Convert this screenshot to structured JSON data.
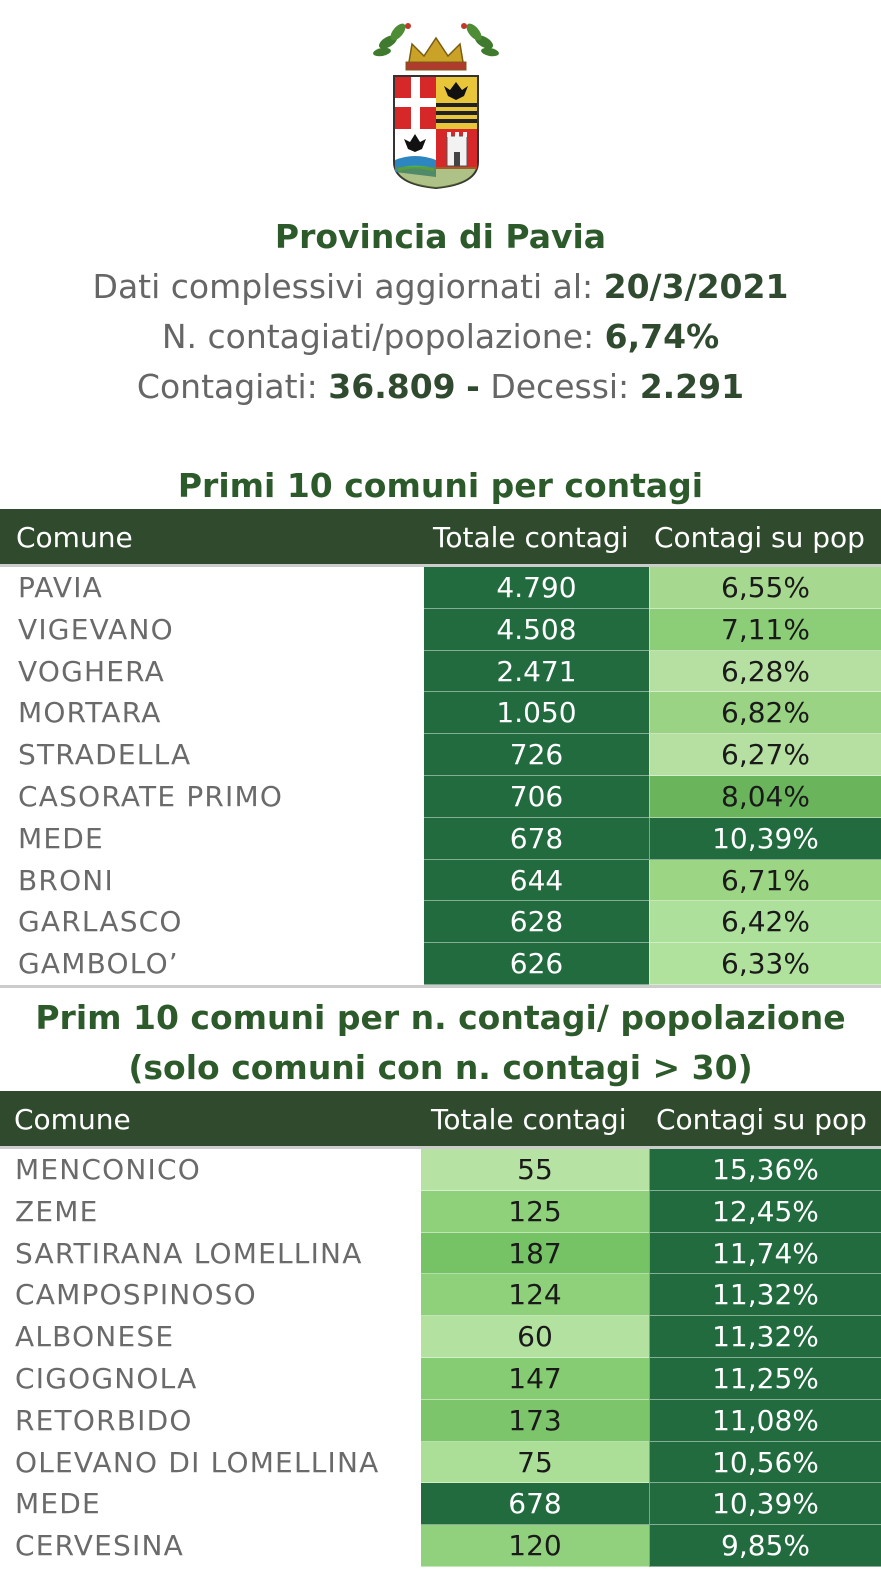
{
  "header": {
    "title": "Provincia di Pavia",
    "date_label": "Dati complessivi aggiornati al:",
    "date_value": "20/3/2021",
    "ratio_label": "N. contagiati/popolazione:",
    "ratio_value": "6,74%",
    "cases_label": "Contagiati:",
    "cases_value": "36.809",
    "separator": "-",
    "deaths_label": "Decessi:",
    "deaths_value": "2.291"
  },
  "table1": {
    "title": "Primi 10 comuni per contagi",
    "columns": [
      "Comune",
      "Totale contagi",
      "Contagi su pop"
    ],
    "rows": [
      {
        "comune": "PAVIA",
        "totale": "4.790",
        "perc": "6,55%",
        "col_a": "#216b3f",
        "col_b": "#a6d98f"
      },
      {
        "comune": "VIGEVANO",
        "totale": "4.508",
        "perc": "7,11%",
        "col_a": "#216b3f",
        "col_b": "#8ccd78"
      },
      {
        "comune": "VOGHERA",
        "totale": "2.471",
        "perc": "6,28%",
        "col_a": "#216b3f",
        "col_b": "#b5e0a2"
      },
      {
        "comune": "MORTARA",
        "totale": "1.050",
        "perc": "6,82%",
        "col_a": "#216b3f",
        "col_b": "#99d383"
      },
      {
        "comune": "STRADELLA",
        "totale": "726",
        "perc": "6,27%",
        "col_a": "#216b3f",
        "col_b": "#b5e0a2"
      },
      {
        "comune": "CASORATE PRIMO",
        "totale": "706",
        "perc": "8,04%",
        "col_a": "#216b3f",
        "col_b": "#6ab45c"
      },
      {
        "comune": "MEDE",
        "totale": "678",
        "perc": "10,39%",
        "col_a": "#216b3f",
        "col_b": "#216b3f"
      },
      {
        "comune": "BRONI",
        "totale": "644",
        "perc": "6,71%",
        "col_a": "#216b3f",
        "col_b": "#9cd584"
      },
      {
        "comune": "GARLASCO",
        "totale": "628",
        "perc": "6,42%",
        "col_a": "#216b3f",
        "col_b": "#ade09a"
      },
      {
        "comune": "GAMBOLO’",
        "totale": "626",
        "perc": "6,33%",
        "col_a": "#216b3f",
        "col_b": "#b0e19d"
      }
    ]
  },
  "table2": {
    "title_line1": "Prim 10 comuni per n. contagi/ popolazione",
    "title_line2": "(solo comuni con n. contagi > 30)",
    "columns": [
      "Comune",
      "Totale contagi",
      "Contagi su pop"
    ],
    "rows": [
      {
        "comune": "MENCONICO",
        "totale": "55",
        "perc": "15,36%",
        "col_a": "#b6e3a3",
        "col_b": "#216b3f"
      },
      {
        "comune": "ZEME",
        "totale": "125",
        "perc": "12,45%",
        "col_a": "#8fd07b",
        "col_b": "#216b3f"
      },
      {
        "comune": "SARTIRANA LOMELLINA",
        "totale": "187",
        "perc": "11,74%",
        "col_a": "#76c366",
        "col_b": "#216b3f"
      },
      {
        "comune": "CAMPOSPINOSO",
        "totale": "124",
        "perc": "11,32%",
        "col_a": "#8fd07b",
        "col_b": "#216b3f"
      },
      {
        "comune": "ALBONESE",
        "totale": "60",
        "perc": "11,32%",
        "col_a": "#b3e2a0",
        "col_b": "#216b3f"
      },
      {
        "comune": "CIGOGNOLA",
        "totale": "147",
        "perc": "11,25%",
        "col_a": "#86cc72",
        "col_b": "#216b3f"
      },
      {
        "comune": "RETORBIDO",
        "totale": "173",
        "perc": "11,08%",
        "col_a": "#7cc56a",
        "col_b": "#216b3f"
      },
      {
        "comune": "OLEVANO DI LOMELLINA",
        "totale": "75",
        "perc": "10,56%",
        "col_a": "#abdf98",
        "col_b": "#216b3f"
      },
      {
        "comune": "MEDE",
        "totale": "678",
        "perc": "10,39%",
        "col_a": "#216b3f",
        "col_b": "#216b3f"
      },
      {
        "comune": "CERVESINA",
        "totale": "120",
        "perc": "9,85%",
        "col_a": "#91d17d",
        "col_b": "#216b3f"
      }
    ]
  }
}
